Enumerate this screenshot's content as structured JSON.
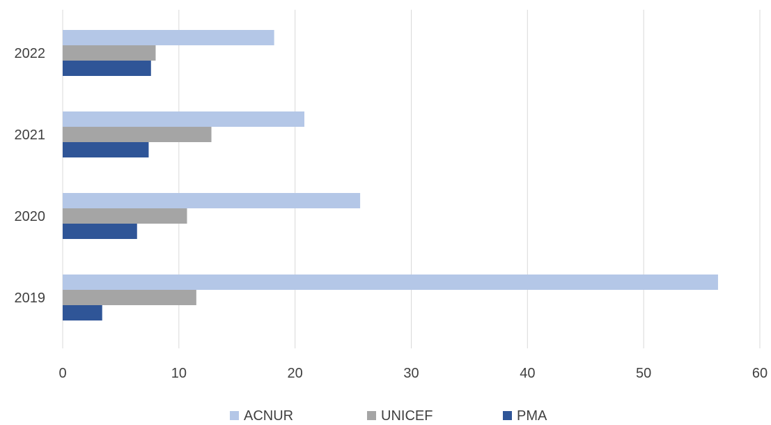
{
  "chart_data": {
    "type": "bar",
    "orientation": "horizontal",
    "categories": [
      "2022",
      "2021",
      "2020",
      "2019"
    ],
    "series": [
      {
        "name": "ACNUR",
        "color": "#b4c7e7",
        "values": [
          18.2,
          20.8,
          25.6,
          56.4
        ]
      },
      {
        "name": "UNICEF",
        "color": "#a5a5a5",
        "values": [
          8.0,
          12.8,
          10.7,
          11.5
        ]
      },
      {
        "name": "PMA",
        "color": "#2f5597",
        "values": [
          7.6,
          7.4,
          6.4,
          3.4
        ]
      }
    ],
    "xlim": [
      0,
      60
    ],
    "xticks": [
      "0",
      "10",
      "20",
      "30",
      "40",
      "50",
      "60"
    ],
    "grid": true,
    "legend_position": "bottom"
  }
}
